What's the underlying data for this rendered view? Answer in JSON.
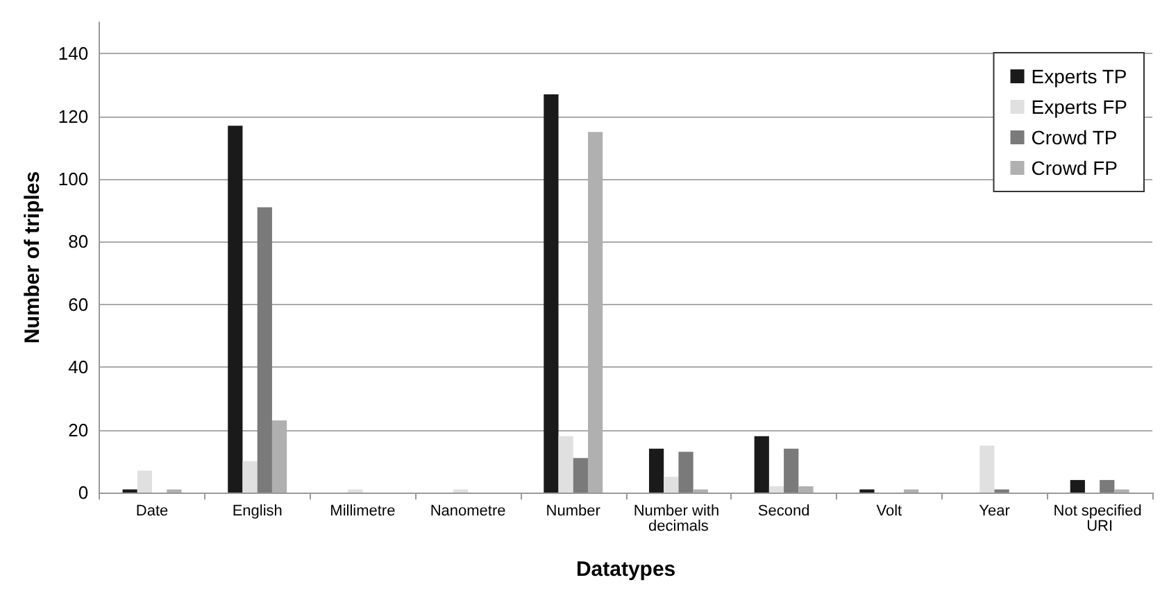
{
  "chart_data": {
    "type": "bar",
    "xlabel": "Datatypes",
    "ylabel": "Number of triples",
    "categories": [
      "Date",
      "English",
      "Millimetre",
      "Nanometre",
      "Number",
      "Number with decimals",
      "Second",
      "Volt",
      "Year",
      "Not specified URI"
    ],
    "series": [
      {
        "name": "Experts TP",
        "color": "#1a1a1a",
        "values": [
          1,
          117,
          0,
          0,
          127,
          14,
          18,
          1,
          0,
          4
        ]
      },
      {
        "name": "Experts FP",
        "color": "#e0e0e0",
        "values": [
          7,
          10,
          1,
          1,
          18,
          5,
          2,
          0,
          15,
          0
        ]
      },
      {
        "name": "Crowd TP",
        "color": "#7a7a7a",
        "values": [
          0,
          91,
          0,
          0,
          11,
          13,
          14,
          0,
          1,
          4
        ]
      },
      {
        "name": "Crowd FP",
        "color": "#b0b0b0",
        "values": [
          1,
          23,
          0,
          0,
          115,
          1,
          2,
          1,
          0,
          1
        ]
      }
    ],
    "ylim": [
      0,
      150
    ],
    "yticks": [
      0,
      20,
      40,
      60,
      80,
      100,
      120,
      140
    ],
    "grid": "y",
    "legend": "top right"
  }
}
